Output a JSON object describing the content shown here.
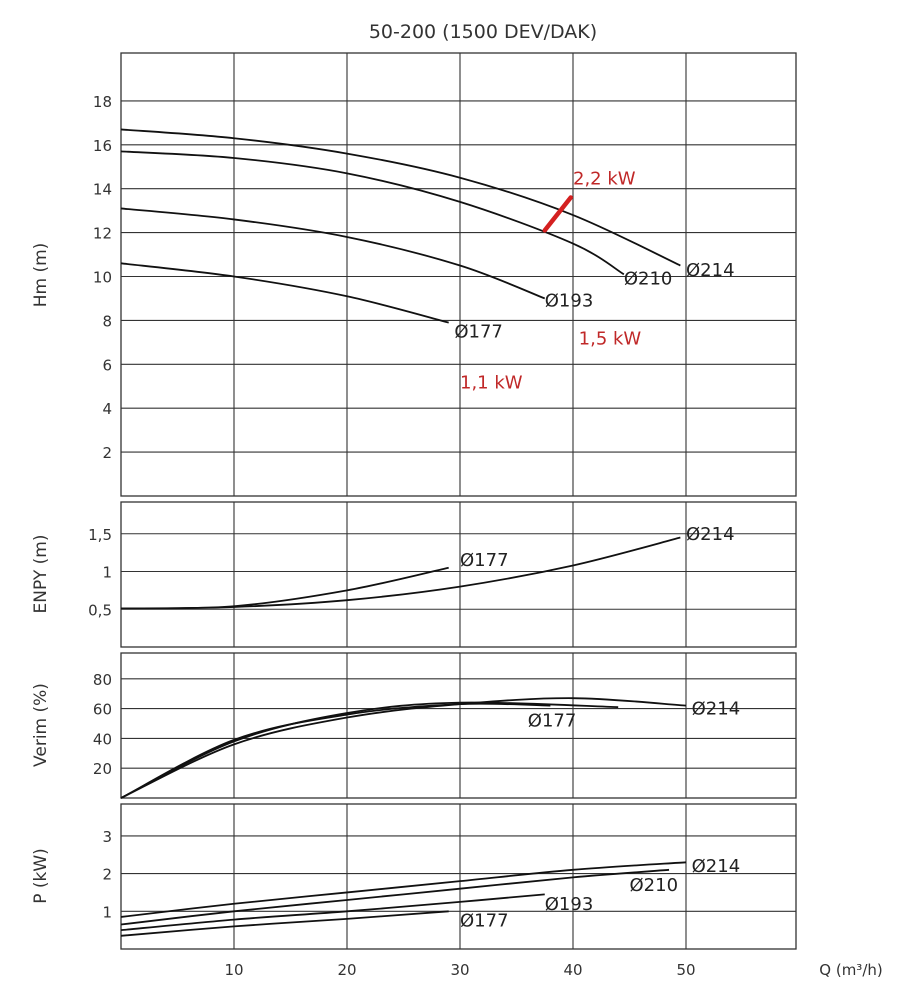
{
  "title": "50-200 (1500 DEV/DAK)",
  "xlabel": "Q (m³/h)",
  "x_ticks": [
    "10",
    "20",
    "30",
    "40",
    "50"
  ],
  "colors": {
    "curve": "#111111",
    "grid": "#333333",
    "power_marker": "#d42020",
    "power_text": "#c02828"
  },
  "chart_data": [
    {
      "type": "line",
      "ylabel": "Hm (m)",
      "y_ticks": [
        "2",
        "4",
        "6",
        "8",
        "10",
        "12",
        "14",
        "16",
        "18"
      ],
      "xlim": [
        0,
        61
      ],
      "ylim": [
        0,
        20
      ],
      "grid": "both",
      "series": [
        {
          "name": "Ø214",
          "x": [
            0,
            10,
            20,
            30,
            40,
            49.5
          ],
          "y": [
            16.7,
            16.3,
            15.6,
            14.5,
            12.8,
            10.5
          ]
        },
        {
          "name": "Ø210",
          "x": [
            0,
            10,
            20,
            30,
            40,
            44.5
          ],
          "y": [
            15.7,
            15.4,
            14.7,
            13.4,
            11.5,
            10.1
          ]
        },
        {
          "name": "Ø193",
          "x": [
            0,
            10,
            20,
            30,
            37.5
          ],
          "y": [
            13.1,
            12.6,
            11.8,
            10.5,
            9.0
          ]
        },
        {
          "name": "Ø177",
          "x": [
            0,
            10,
            20,
            29
          ],
          "y": [
            10.6,
            10.0,
            9.1,
            7.9
          ]
        }
      ],
      "series_labels": [
        {
          "text": "Ø214",
          "x": 50,
          "y": 10.3
        },
        {
          "text": "Ø210",
          "x": 44.5,
          "y": 9.9
        },
        {
          "text": "Ø193",
          "x": 37.5,
          "y": 8.9
        },
        {
          "text": "Ø177",
          "x": 29.5,
          "y": 7.5
        }
      ],
      "power_marker": {
        "from": {
          "x": 37.5,
          "y": 12.1
        },
        "to": {
          "x": 39.8,
          "y": 13.6
        }
      },
      "annotations": [
        {
          "text": "2,2 kW",
          "x": 40,
          "y": 14.2
        },
        {
          "text": "1,5 kW",
          "x": 40.5,
          "y": 6.9
        },
        {
          "text": "1,1 kW",
          "x": 30,
          "y": 4.9
        }
      ]
    },
    {
      "type": "line",
      "ylabel": "ENPY (m)",
      "y_ticks": [
        "0,5",
        "1",
        "1,5"
      ],
      "xlim": [
        0,
        61
      ],
      "ylim": [
        0,
        2
      ],
      "grid": "both",
      "series": [
        {
          "name": "Ø214",
          "x": [
            0,
            10,
            20,
            30,
            40,
            49.5
          ],
          "y": [
            0.51,
            0.53,
            0.62,
            0.8,
            1.08,
            1.45
          ]
        },
        {
          "name": "Ø177",
          "x": [
            0,
            10,
            20,
            29
          ],
          "y": [
            0.51,
            0.54,
            0.75,
            1.05
          ]
        }
      ],
      "series_labels": [
        {
          "text": "Ø214",
          "x": 50,
          "y": 1.5
        },
        {
          "text": "Ø177",
          "x": 30,
          "y": 1.15
        }
      ]
    },
    {
      "type": "line",
      "ylabel": "Verim (%)",
      "y_ticks": [
        "20",
        "40",
        "60",
        "80"
      ],
      "xlim": [
        0,
        61
      ],
      "ylim": [
        0,
        100
      ],
      "grid": "both",
      "series": [
        {
          "name": "Ø214",
          "x": [
            0,
            10,
            20,
            30,
            40,
            50
          ],
          "y": [
            0,
            36,
            54,
            63,
            67,
            62
          ]
        },
        {
          "name": "Ø177",
          "x": [
            0,
            10,
            20,
            30,
            38
          ],
          "y": [
            0,
            39,
            56,
            63,
            62
          ]
        },
        {
          "name": "",
          "x": [
            0,
            10,
            20,
            30,
            44
          ],
          "y": [
            0,
            38,
            57,
            64,
            61
          ]
        }
      ],
      "series_labels": [
        {
          "text": "Ø214",
          "x": 50.5,
          "y": 60
        },
        {
          "text": "Ø177",
          "x": 36,
          "y": 52
        }
      ]
    },
    {
      "type": "line",
      "ylabel": "P (kW)",
      "y_ticks": [
        "1",
        "2",
        "3"
      ],
      "xlim": [
        0,
        61
      ],
      "ylim": [
        0,
        4
      ],
      "grid": "both",
      "series": [
        {
          "name": "Ø214",
          "x": [
            0,
            10,
            20,
            30,
            40,
            50
          ],
          "y": [
            0.85,
            1.2,
            1.5,
            1.8,
            2.1,
            2.3
          ]
        },
        {
          "name": "Ø210",
          "x": [
            0,
            10,
            20,
            30,
            40,
            48.5
          ],
          "y": [
            0.65,
            1.0,
            1.3,
            1.6,
            1.9,
            2.1
          ]
        },
        {
          "name": "Ø193",
          "x": [
            0,
            10,
            20,
            30,
            37.5
          ],
          "y": [
            0.5,
            0.78,
            1.0,
            1.25,
            1.45
          ]
        },
        {
          "name": "Ø177",
          "x": [
            0,
            10,
            20,
            29
          ],
          "y": [
            0.35,
            0.6,
            0.8,
            1.0
          ]
        }
      ],
      "series_labels": [
        {
          "text": "Ø214",
          "x": 50.5,
          "y": 2.2
        },
        {
          "text": "Ø210",
          "x": 45,
          "y": 1.7
        },
        {
          "text": "Ø193",
          "x": 37.5,
          "y": 1.2
        },
        {
          "text": "Ø177",
          "x": 30,
          "y": 0.75
        }
      ]
    }
  ]
}
